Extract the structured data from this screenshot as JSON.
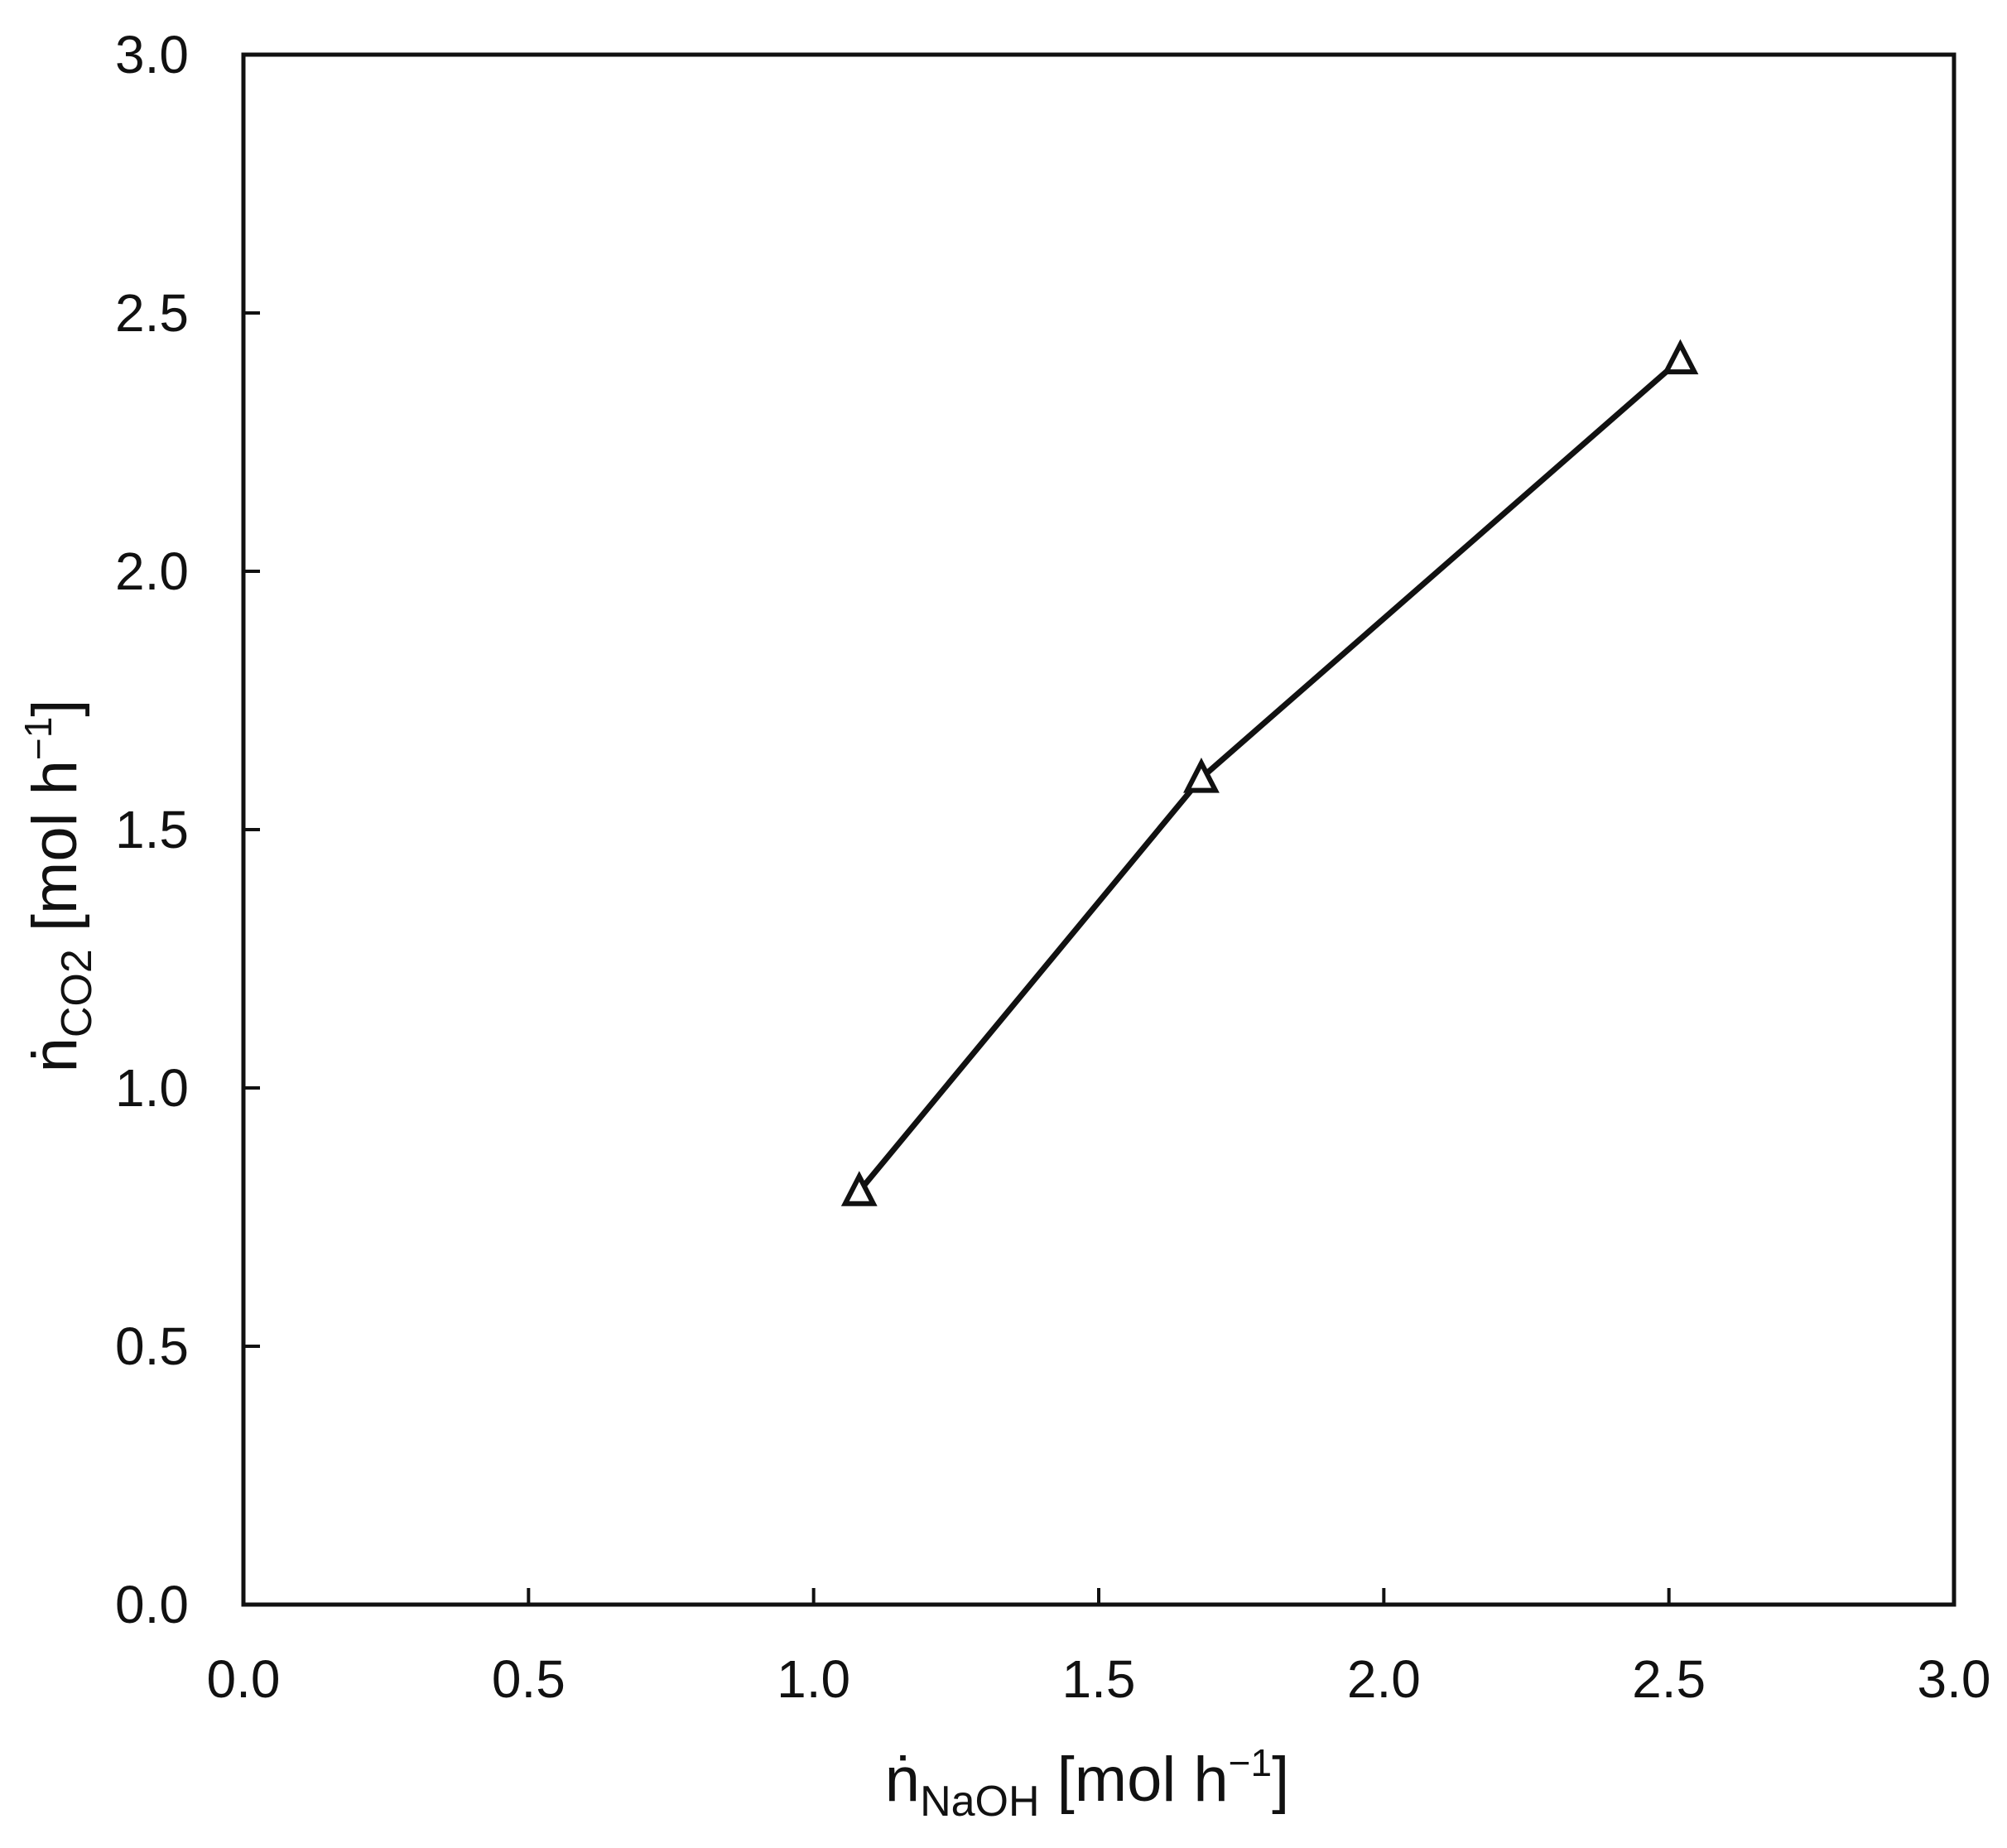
{
  "chart_data": {
    "type": "line",
    "marker": "open-triangle",
    "series": [
      {
        "x": [
          1.08,
          1.68,
          2.52
        ],
        "y": [
          0.8,
          1.6,
          2.41
        ]
      }
    ],
    "xlim": [
      0.0,
      3.0
    ],
    "ylim": [
      0.0,
      3.0
    ],
    "xticks": [
      "0.0",
      "0.5",
      "1.0",
      "1.5",
      "2.0",
      "2.5",
      "3.0"
    ],
    "yticks": [
      "0.0",
      "0.5",
      "1.0",
      "1.5",
      "2.0",
      "2.5",
      "3.0"
    ],
    "xlabel": {
      "main": "ṅ",
      "sub": "NaOH",
      "unit_open": " [mol h",
      "sup": "−1",
      "unit_close": "]"
    },
    "ylabel": {
      "main": "ṅ",
      "sub": "CO2",
      "unit_open": " [mol h",
      "sup": "−1",
      "unit_close": "]"
    },
    "grid": false,
    "legend": "none",
    "colors": {
      "line": "#111111",
      "marker_stroke": "#111111",
      "marker_fill": "#ffffff",
      "axes": "#111111"
    }
  }
}
